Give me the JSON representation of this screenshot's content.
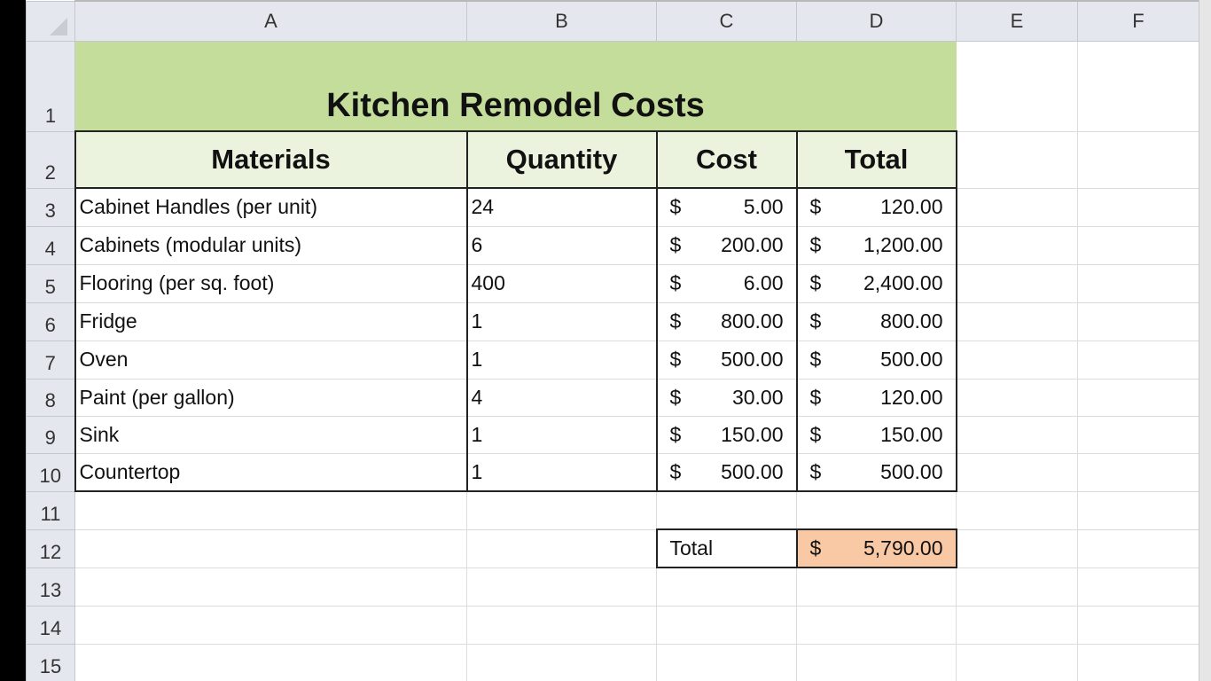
{
  "columns": [
    "A",
    "B",
    "C",
    "D",
    "E",
    "F"
  ],
  "title": "Kitchen Remodel Costs",
  "headers": [
    "Materials",
    "Quantity",
    "Cost",
    "Total"
  ],
  "currency_symbol": "$",
  "rows": [
    {
      "material": "Cabinet Handles (per unit)",
      "quantity": "24",
      "cost": "5.00",
      "total": "120.00"
    },
    {
      "material": "Cabinets (modular units)",
      "quantity": "6",
      "cost": "200.00",
      "total": "1,200.00"
    },
    {
      "material": "Flooring (per sq. foot)",
      "quantity": "400",
      "cost": "6.00",
      "total": "2,400.00"
    },
    {
      "material": "Fridge",
      "quantity": "1",
      "cost": "800.00",
      "total": "800.00"
    },
    {
      "material": "Oven",
      "quantity": "1",
      "cost": "500.00",
      "total": "500.00"
    },
    {
      "material": "Paint (per gallon)",
      "quantity": "4",
      "cost": "30.00",
      "total": "120.00"
    },
    {
      "material": "Sink",
      "quantity": "1",
      "cost": "150.00",
      "total": "150.00"
    },
    {
      "material": "Countertop",
      "quantity": "1",
      "cost": "500.00",
      "total": "500.00"
    }
  ],
  "summary": {
    "label": "Total",
    "value": "5,790.00"
  },
  "row_numbers": [
    "1",
    "2",
    "3",
    "4",
    "5",
    "6",
    "7",
    "8",
    "9",
    "10",
    "11",
    "12",
    "13",
    "14",
    "15"
  ],
  "colors": {
    "title_fill": "#c4dd9b",
    "header_fill": "#ebf2dd",
    "total_fill": "#f9c9a6"
  }
}
